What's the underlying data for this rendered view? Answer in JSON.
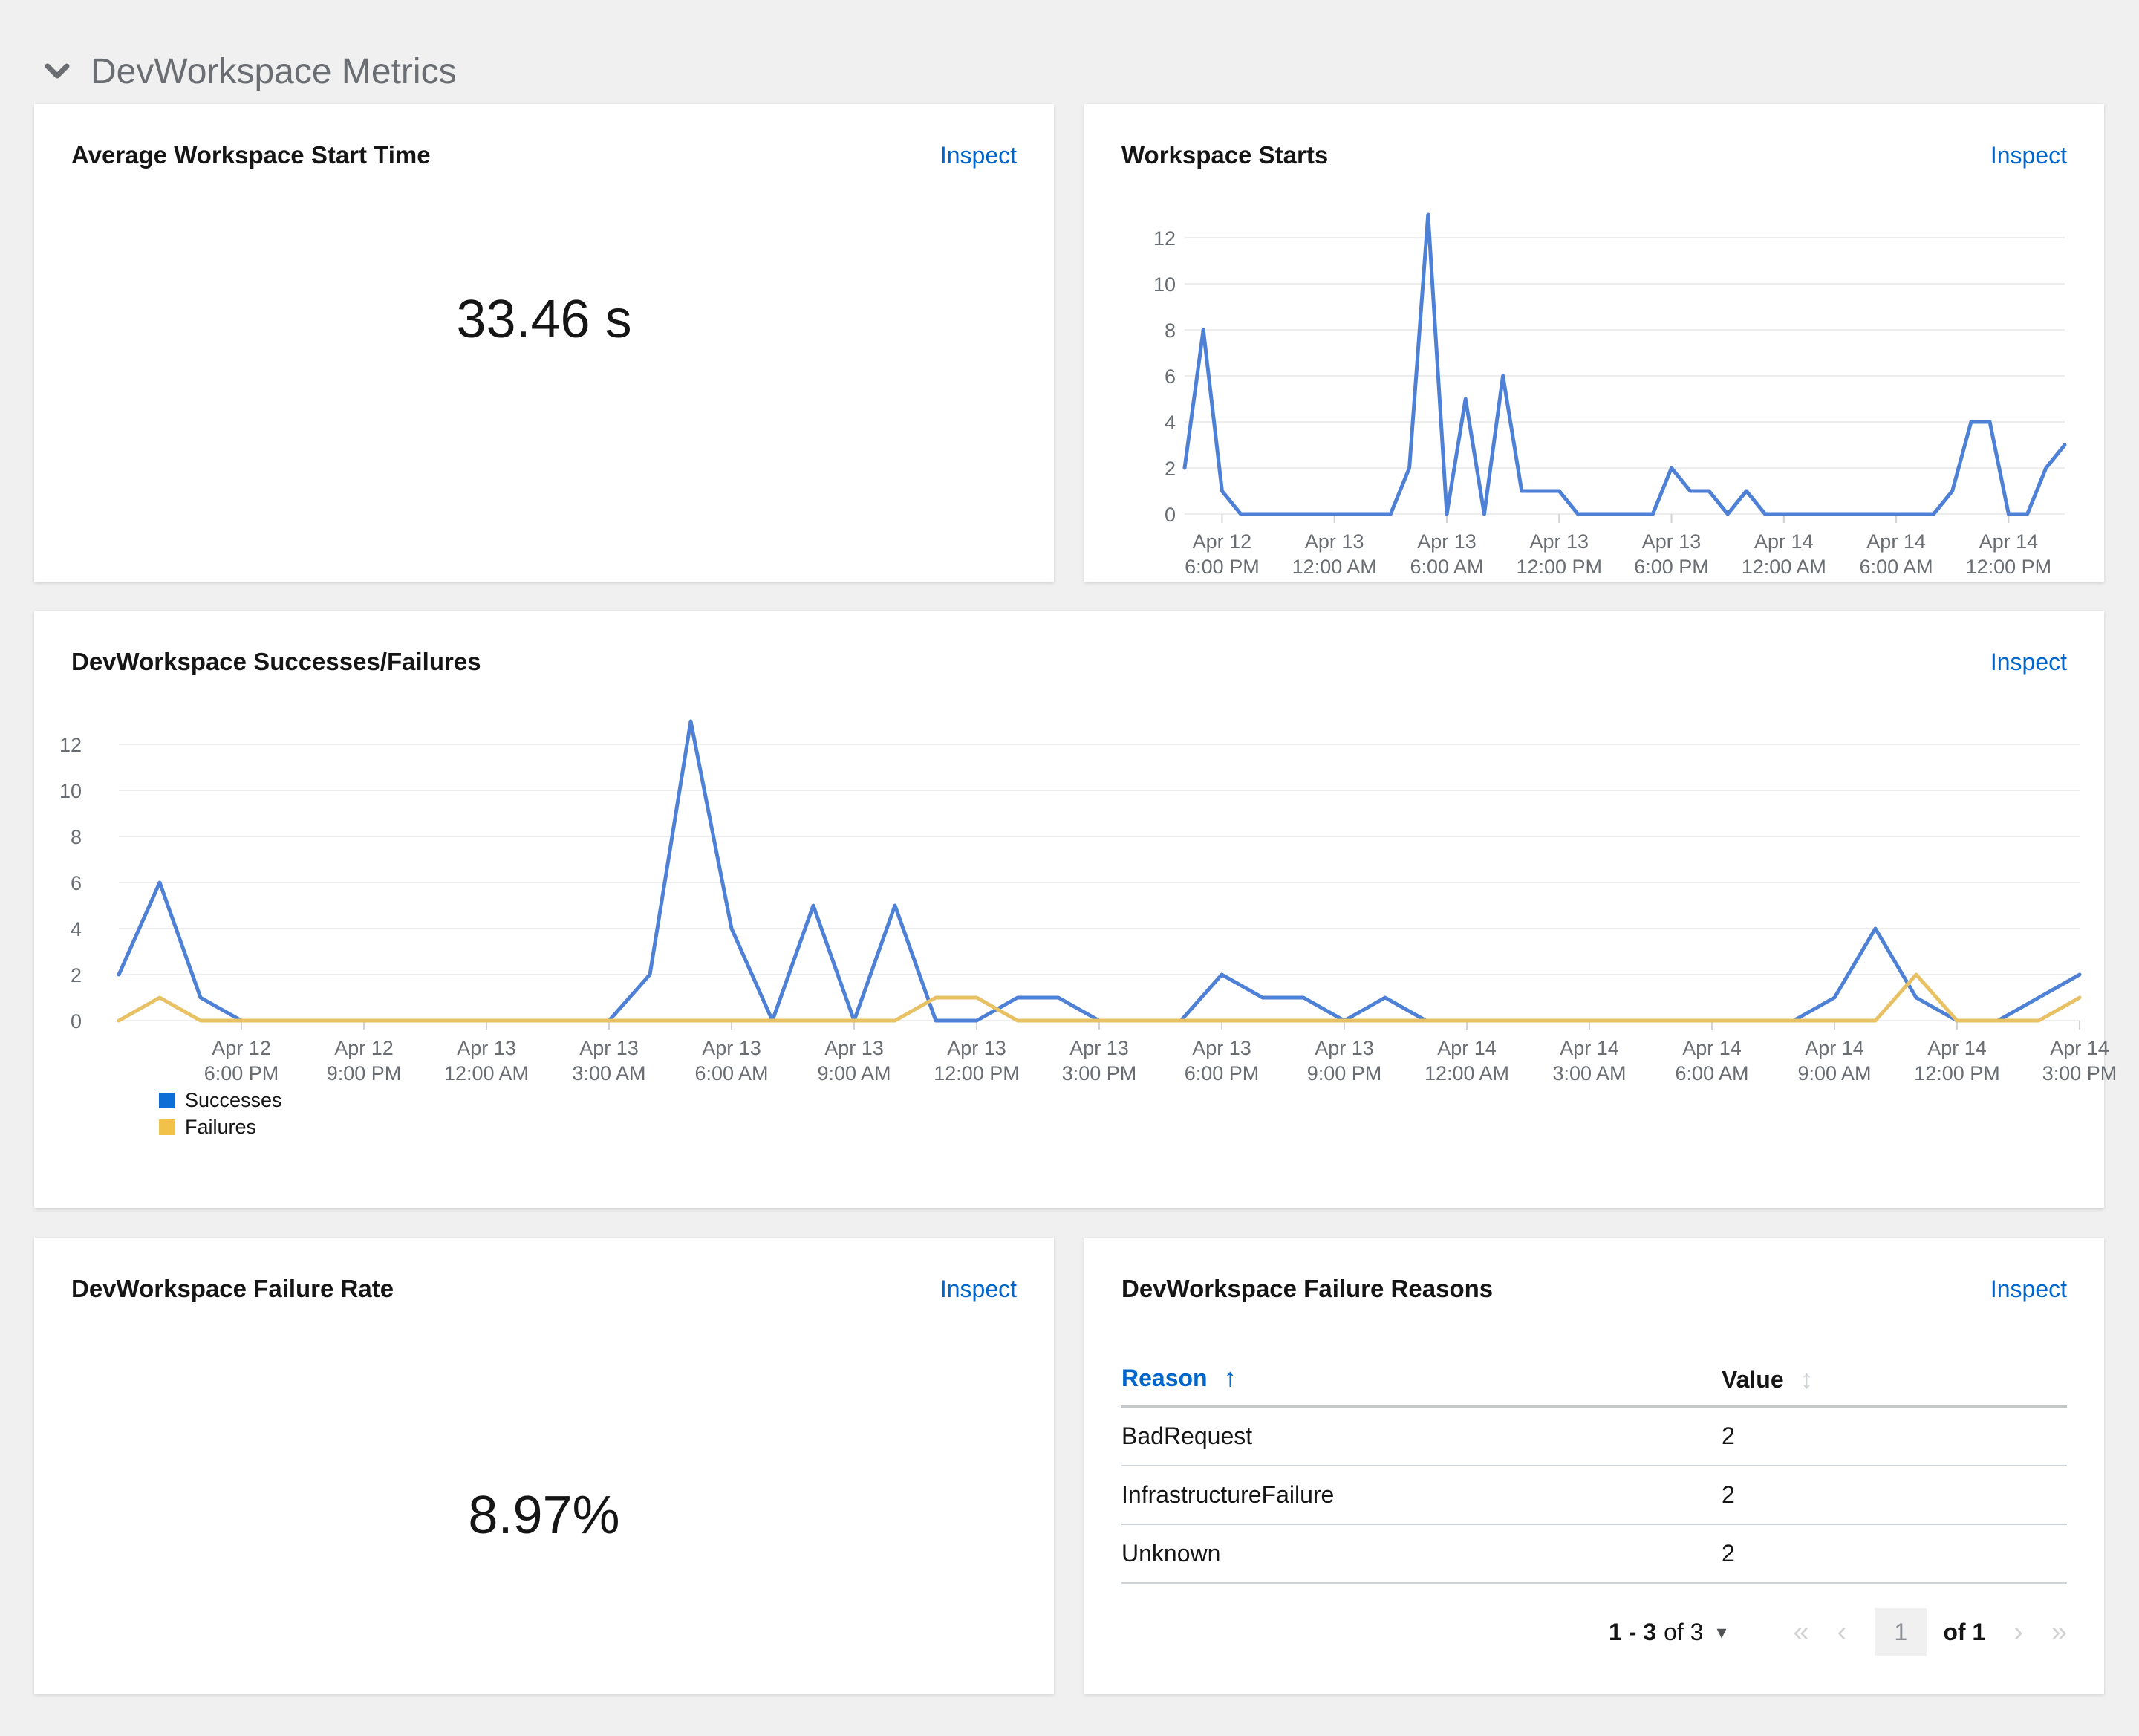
{
  "colors": {
    "page_background": "#f0f0f0",
    "card_background": "#ffffff",
    "link_blue": "#0066cc",
    "line_blue": "#4e81d6",
    "line_gold": "#e7c163",
    "legend_blue": "#0d6ed6",
    "legend_gold": "#f0c24a",
    "grid": "#ededed",
    "tick": "#d2d2d2",
    "axis_text": "#6a6e73",
    "section_title": "#6a6e73"
  },
  "section": {
    "title": "DevWorkspace Metrics"
  },
  "cards": {
    "avg_start_time": {
      "title": "Average Workspace Start Time",
      "inspect_label": "Inspect",
      "value": "33.46 s"
    },
    "workspace_starts": {
      "title": "Workspace Starts",
      "inspect_label": "Inspect"
    },
    "successes_failures": {
      "title": "DevWorkspace Successes/Failures",
      "inspect_label": "Inspect"
    },
    "failure_rate": {
      "title": "DevWorkspace Failure Rate",
      "inspect_label": "Inspect",
      "value": "8.97%"
    },
    "failure_reasons": {
      "title": "DevWorkspace Failure Reasons",
      "inspect_label": "Inspect",
      "table": {
        "columns": [
          "Reason",
          "Value"
        ],
        "rows": [
          {
            "reason": "BadRequest",
            "value": "2"
          },
          {
            "reason": "InfrastructureFailure",
            "value": "2"
          },
          {
            "reason": "Unknown",
            "value": "2"
          }
        ]
      },
      "pagination": {
        "range": "1 - 3",
        "of_total": "of 3",
        "page": "1",
        "of_pages": "of 1"
      }
    }
  },
  "chart_data": [
    {
      "id": "workspace-starts",
      "type": "line",
      "title": "Workspace Starts",
      "x_interval": "1 hour",
      "ylim": [
        0,
        13
      ],
      "yticks": [
        0,
        2,
        4,
        6,
        8,
        10,
        12
      ],
      "grid": "horizontal",
      "legend_position": "none",
      "series": [
        {
          "name": "Workspace Starts",
          "values": [
            2,
            8,
            1,
            0,
            0,
            0,
            0,
            0,
            0,
            0,
            0,
            0,
            2,
            13,
            0,
            5,
            0,
            6,
            1,
            1,
            1,
            0,
            0,
            0,
            0,
            0,
            2,
            1,
            1,
            0,
            1,
            0,
            0,
            0,
            0,
            0,
            0,
            0,
            0,
            0,
            0,
            1,
            4,
            4,
            0,
            0,
            2,
            3
          ]
        }
      ],
      "ticks": [
        {
          "i": 2,
          "label": "Apr 12|6:00 PM"
        },
        {
          "i": 8,
          "label": "Apr 13|12:00 AM"
        },
        {
          "i": 14,
          "label": "Apr 13|6:00 AM"
        },
        {
          "i": 20,
          "label": "Apr 13|12:00 PM"
        },
        {
          "i": 26,
          "label": "Apr 13|6:00 PM"
        },
        {
          "i": 32,
          "label": "Apr 14|12:00 AM"
        },
        {
          "i": 38,
          "label": "Apr 14|6:00 AM"
        },
        {
          "i": 44,
          "label": "Apr 14|12:00 PM"
        }
      ]
    },
    {
      "id": "successes-failures",
      "type": "line",
      "title": "DevWorkspace Successes/Failures",
      "x_interval": "1 hour",
      "ylim": [
        0,
        13
      ],
      "yticks": [
        0,
        2,
        4,
        6,
        8,
        10,
        12
      ],
      "grid": "horizontal",
      "legend_position": "bottom-left",
      "series": [
        {
          "name": "Successes",
          "values": [
            2,
            6,
            1,
            0,
            0,
            0,
            0,
            0,
            0,
            0,
            0,
            0,
            0,
            2,
            13,
            4,
            0,
            5,
            0,
            5,
            0,
            0,
            1,
            1,
            0,
            0,
            0,
            2,
            1,
            1,
            0,
            1,
            0,
            0,
            0,
            0,
            0,
            0,
            0,
            0,
            0,
            0,
            1,
            4,
            1,
            0,
            0,
            1,
            2
          ]
        },
        {
          "name": "Failures",
          "values": [
            0,
            1,
            0,
            0,
            0,
            0,
            0,
            0,
            0,
            0,
            0,
            0,
            0,
            0,
            0,
            0,
            0,
            0,
            0,
            0,
            1,
            1,
            0,
            0,
            0,
            0,
            0,
            0,
            0,
            0,
            0,
            0,
            0,
            0,
            0,
            0,
            0,
            0,
            0,
            0,
            0,
            0,
            0,
            0,
            2,
            0,
            0,
            0,
            1
          ]
        }
      ],
      "ticks": [
        {
          "i": 3,
          "label": "Apr 12|6:00 PM"
        },
        {
          "i": 6,
          "label": "Apr 12|9:00 PM"
        },
        {
          "i": 9,
          "label": "Apr 13|12:00 AM"
        },
        {
          "i": 12,
          "label": "Apr 13|3:00 AM"
        },
        {
          "i": 15,
          "label": "Apr 13|6:00 AM"
        },
        {
          "i": 18,
          "label": "Apr 13|9:00 AM"
        },
        {
          "i": 21,
          "label": "Apr 13|12:00 PM"
        },
        {
          "i": 24,
          "label": "Apr 13|3:00 PM"
        },
        {
          "i": 27,
          "label": "Apr 13|6:00 PM"
        },
        {
          "i": 30,
          "label": "Apr 13|9:00 PM"
        },
        {
          "i": 33,
          "label": "Apr 14|12:00 AM"
        },
        {
          "i": 36,
          "label": "Apr 14|3:00 AM"
        },
        {
          "i": 39,
          "label": "Apr 14|6:00 AM"
        },
        {
          "i": 42,
          "label": "Apr 14|9:00 AM"
        },
        {
          "i": 45,
          "label": "Apr 14|12:00 PM"
        },
        {
          "i": 48,
          "label": "Apr 14|3:00 PM"
        }
      ]
    }
  ]
}
